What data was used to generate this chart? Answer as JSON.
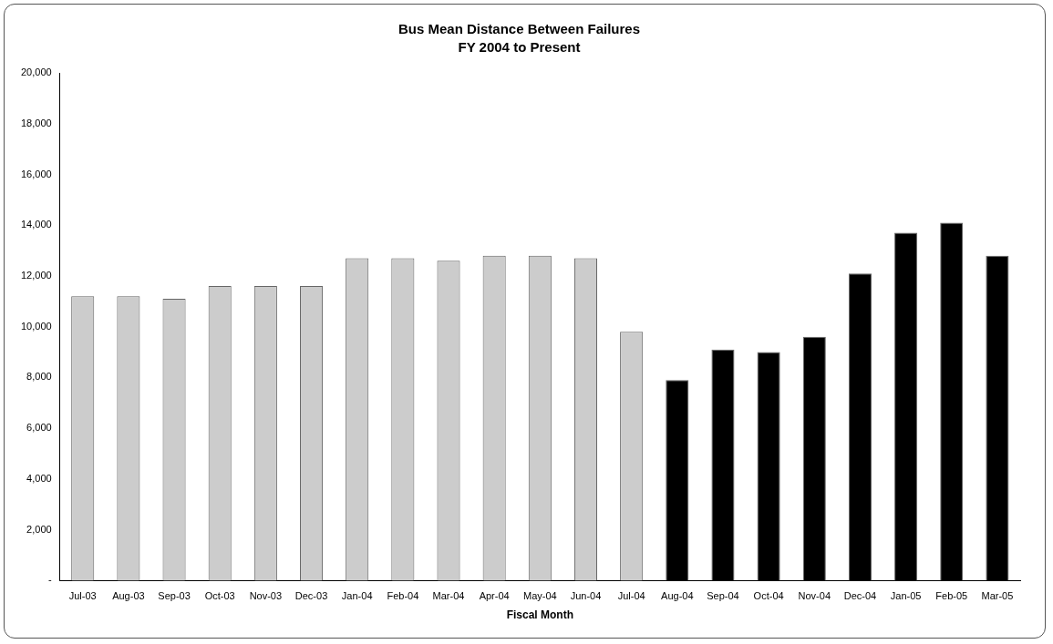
{
  "chart_data": {
    "type": "bar",
    "title": "Bus Mean Distance Between Failures",
    "subtitle": "FY 2004 to Present",
    "xlabel": "Fiscal Month",
    "categories": [
      "Jul-03",
      "Aug-03",
      "Sep-03",
      "Oct-03",
      "Nov-03",
      "Dec-03",
      "Jan-04",
      "Feb-04",
      "Mar-04",
      "Apr-04",
      "May-04",
      "Jun-04",
      "Jul-04",
      "Aug-04",
      "Sep-04",
      "Oct-04",
      "Nov-04",
      "Dec-04",
      "Jan-05",
      "Feb-05",
      "Mar-05"
    ],
    "values": [
      11200,
      11200,
      11100,
      11600,
      11600,
      11600,
      12700,
      12700,
      12600,
      12800,
      12800,
      12700,
      9800,
      7900,
      9100,
      9000,
      9600,
      12100,
      13700,
      14100,
      12800
    ],
    "colors": [
      "#cccccc",
      "#cccccc",
      "#cccccc",
      "#cccccc",
      "#cccccc",
      "#cccccc",
      "#cccccc",
      "#cccccc",
      "#cccccc",
      "#cccccc",
      "#cccccc",
      "#cccccc",
      "#cccccc",
      "#000000",
      "#000000",
      "#000000",
      "#000000",
      "#000000",
      "#000000",
      "#000000",
      "#000000"
    ],
    "ylim": [
      0,
      20000
    ],
    "yticks": [
      {
        "value": 0,
        "label": "-"
      },
      {
        "value": 2000,
        "label": "2,000"
      },
      {
        "value": 4000,
        "label": "4,000"
      },
      {
        "value": 6000,
        "label": "6,000"
      },
      {
        "value": 8000,
        "label": "8,000"
      },
      {
        "value": 10000,
        "label": "10,000"
      },
      {
        "value": 12000,
        "label": "12,000"
      },
      {
        "value": 14000,
        "label": "14,000"
      },
      {
        "value": 16000,
        "label": "16,000"
      },
      {
        "value": 18000,
        "label": "18,000"
      },
      {
        "value": 20000,
        "label": "20,000"
      }
    ],
    "grid": false,
    "legend": false
  }
}
